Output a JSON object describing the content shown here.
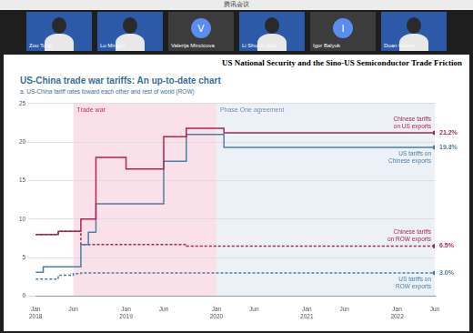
{
  "window": {
    "title": "腾讯会议"
  },
  "participants": [
    {
      "name": "Zou Tong"
    },
    {
      "name": "Lu Mingyu"
    },
    {
      "name": "Valerija Mincicova",
      "avatar": "V"
    },
    {
      "name": "Li Shujun (Ed)"
    },
    {
      "name": "Igor Balyuk",
      "avatar": "I"
    },
    {
      "name": "Duan Guorui"
    }
  ],
  "slide": {
    "title": "US National Security and the Sino-US Semiconductor Trade Friction"
  },
  "chart_data": {
    "type": "line",
    "title": "US-China trade war tariffs: An up-to-date chart",
    "subtitle": "a. US-China tariff rates toward each other and rest of world (ROW)",
    "x": [
      0,
      1,
      3,
      5,
      6,
      7,
      8,
      12,
      17,
      20,
      25,
      53
    ],
    "series": [
      {
        "name": "Chinese tariffs on US exports",
        "color": "#b0244f",
        "line_style": "solid",
        "values": [
          8,
          8,
          8.4,
          8.4,
          10,
          10,
          18,
          16.5,
          20.7,
          21.8,
          21.2,
          21.2
        ],
        "value_labels": [
          null,
          null,
          null,
          null,
          null,
          null,
          null,
          null,
          null,
          null,
          null,
          "21.2%"
        ]
      },
      {
        "name": "US tariffs on Chinese exports",
        "color": "#4d7fa3",
        "line_style": "solid",
        "values": [
          3.1,
          3.8,
          3.8,
          3.8,
          6.7,
          8.3,
          12,
          12,
          17.5,
          21,
          19.3,
          19.3
        ],
        "value_labels": [
          null,
          null,
          null,
          null,
          null,
          null,
          null,
          null,
          null,
          null,
          null,
          "19.3%"
        ]
      },
      {
        "name": "Chinese tariffs on ROW exports",
        "color": "#b0244f",
        "line_style": "dashed",
        "values": [
          8,
          8,
          8.4,
          8.4,
          6.7,
          6.7,
          6.7,
          6.7,
          6.7,
          6.5,
          6.5,
          6.5
        ],
        "value_labels": [
          null,
          null,
          null,
          null,
          null,
          null,
          null,
          null,
          null,
          null,
          null,
          "6.5%"
        ]
      },
      {
        "name": "US tariffs on ROW exports",
        "color": "#4d7fa3",
        "line_style": "dashed",
        "values": [
          2.2,
          2.2,
          2.7,
          2.9,
          3,
          3,
          3,
          3,
          3,
          3,
          3,
          3
        ],
        "value_labels": [
          null,
          null,
          null,
          null,
          null,
          null,
          null,
          null,
          null,
          null,
          null,
          "3.0%"
        ]
      }
    ],
    "annotations": [
      {
        "label": "Trade war",
        "from": 5,
        "to": 24
      },
      {
        "label": "Phase One agreement",
        "from": 24,
        "to": 53
      }
    ],
    "xlim": [
      0,
      53
    ],
    "xticks": [
      {
        "value": 0,
        "label": "Jan 2018"
      },
      {
        "value": 5,
        "label": "Jun"
      },
      {
        "value": 12,
        "label": "Jan 2019"
      },
      {
        "value": 17,
        "label": "Jun"
      },
      {
        "value": 24,
        "label": "Jan 2020"
      },
      {
        "value": 29,
        "label": "Jun"
      },
      {
        "value": 36,
        "label": "Jan 2021"
      },
      {
        "value": 41,
        "label": "Jun"
      },
      {
        "value": 48,
        "label": "Jan 2022"
      },
      {
        "value": 53,
        "label": "Jun"
      }
    ],
    "ylim": [
      0,
      25
    ],
    "yticks": [
      0,
      5,
      10,
      15,
      20,
      25
    ],
    "grid": true
  }
}
